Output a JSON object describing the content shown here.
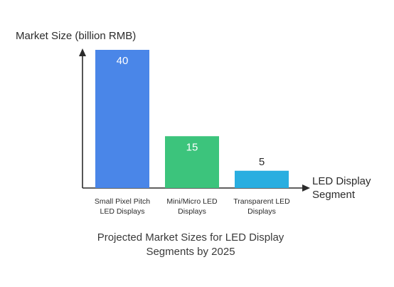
{
  "chart_data": {
    "type": "bar",
    "title": "Projected Market Sizes for LED Display Segments by 2025",
    "title_lines": [
      "Projected Market Sizes for LED Display",
      "Segments by 2025"
    ],
    "ylabel": "Market Size (billion RMB)",
    "xlabel": "LED Display Segment",
    "xlabel_lines": [
      "LED Display",
      "Segment"
    ],
    "categories": [
      "Small Pixel Pitch LED Displays",
      "Mini/Micro LED Displays",
      "Transparent LED Displays"
    ],
    "category_lines": [
      [
        "Small Pixel Pitch",
        "LED Displays"
      ],
      [
        "Mini/Micro LED",
        "Displays"
      ],
      [
        "Transparent LED",
        "Displays"
      ]
    ],
    "values": [
      40,
      15,
      5
    ],
    "value_labels": [
      "40",
      "15",
      "5"
    ],
    "colors": [
      "#4a86e8",
      "#3cc47c",
      "#29aee0"
    ],
    "ylim": [
      0,
      40
    ],
    "grid": false
  }
}
